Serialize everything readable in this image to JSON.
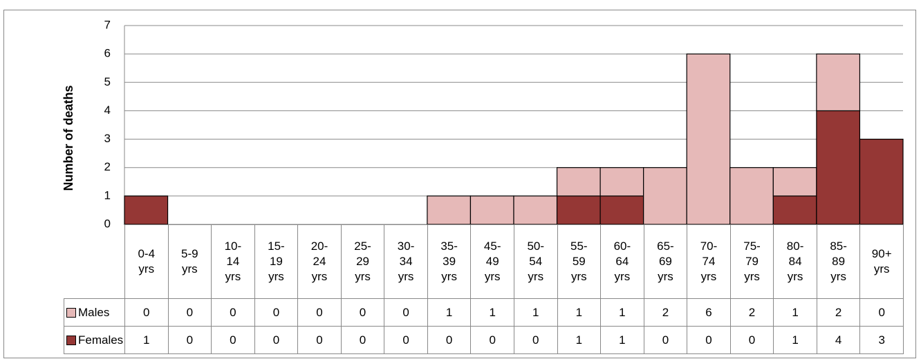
{
  "chart_data": {
    "type": "bar",
    "stacked": true,
    "ylabel": "Number of deaths",
    "categories": [
      "0-4 yrs",
      "5-9 yrs",
      "10-14 yrs",
      "15-19 yrs",
      "20-24 yrs",
      "25-29 yrs",
      "30-34 yrs",
      "35-39 yrs",
      "45-49 yrs",
      "50-54 yrs",
      "55-59 yrs",
      "60-64 yrs",
      "65-69 yrs",
      "70-74 yrs",
      "75-79 yrs",
      "80-84 yrs",
      "85-89 yrs",
      "90+ yrs"
    ],
    "series": [
      {
        "name": "Males",
        "color": "#e6b9b8",
        "values": [
          0,
          0,
          0,
          0,
          0,
          0,
          0,
          1,
          1,
          1,
          1,
          1,
          2,
          6,
          2,
          1,
          2,
          0
        ]
      },
      {
        "name": "Females",
        "color": "#953735",
        "values": [
          1,
          0,
          0,
          0,
          0,
          0,
          0,
          0,
          0,
          0,
          1,
          1,
          0,
          0,
          0,
          1,
          4,
          3
        ]
      }
    ],
    "stack_order": [
      "Females",
      "Males"
    ],
    "ylim": [
      0,
      7
    ],
    "yticks": [
      0,
      1,
      2,
      3,
      4,
      5,
      6,
      7
    ],
    "grid": true
  }
}
